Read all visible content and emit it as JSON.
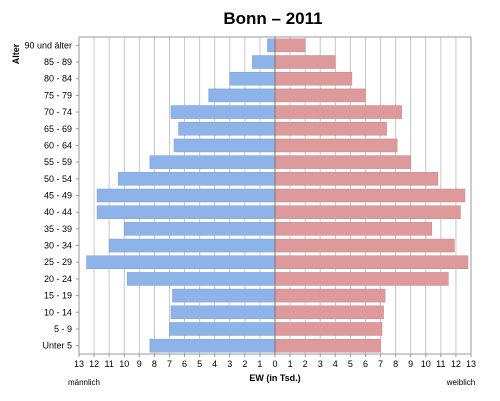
{
  "chart_data": {
    "type": "bar",
    "title": "Bonn – 2011",
    "ylabel": "Alter",
    "xlabel": "EW (in Tsd.)",
    "left_label": "männlich",
    "right_label": "weiblich",
    "xlim": [
      -13,
      13
    ],
    "xticks": [
      13,
      12,
      11,
      10,
      9,
      8,
      7,
      6,
      5,
      4,
      3,
      2,
      1,
      0,
      1,
      2,
      3,
      4,
      5,
      6,
      7,
      8,
      9,
      10,
      11,
      12,
      13
    ],
    "grid": true,
    "categories": [
      "90 und älter",
      "85 - 89",
      "80 - 84",
      "75 - 79",
      "70 - 74",
      "65 - 69",
      "60 - 64",
      "55 - 59",
      "50 - 54",
      "45 - 49",
      "40 - 44",
      "35 - 39",
      "30 - 34",
      "25 - 29",
      "20 - 24",
      "15 - 19",
      "10 - 14",
      "5 - 9",
      "Unter 5"
    ],
    "series": [
      {
        "name": "männlich",
        "color": "#8db3e8",
        "values": [
          0.5,
          1.5,
          3.0,
          4.4,
          6.9,
          6.4,
          6.7,
          8.3,
          10.4,
          11.8,
          11.8,
          10.0,
          11.0,
          12.5,
          9.8,
          6.8,
          6.9,
          7.0,
          8.3
        ]
      },
      {
        "name": "weiblich",
        "color": "#de9a9a",
        "values": [
          2.0,
          4.0,
          5.1,
          6.0,
          8.4,
          7.4,
          8.1,
          9.0,
          10.8,
          12.6,
          12.3,
          10.4,
          11.9,
          12.8,
          11.5,
          7.3,
          7.2,
          7.1,
          7.0
        ]
      }
    ]
  }
}
